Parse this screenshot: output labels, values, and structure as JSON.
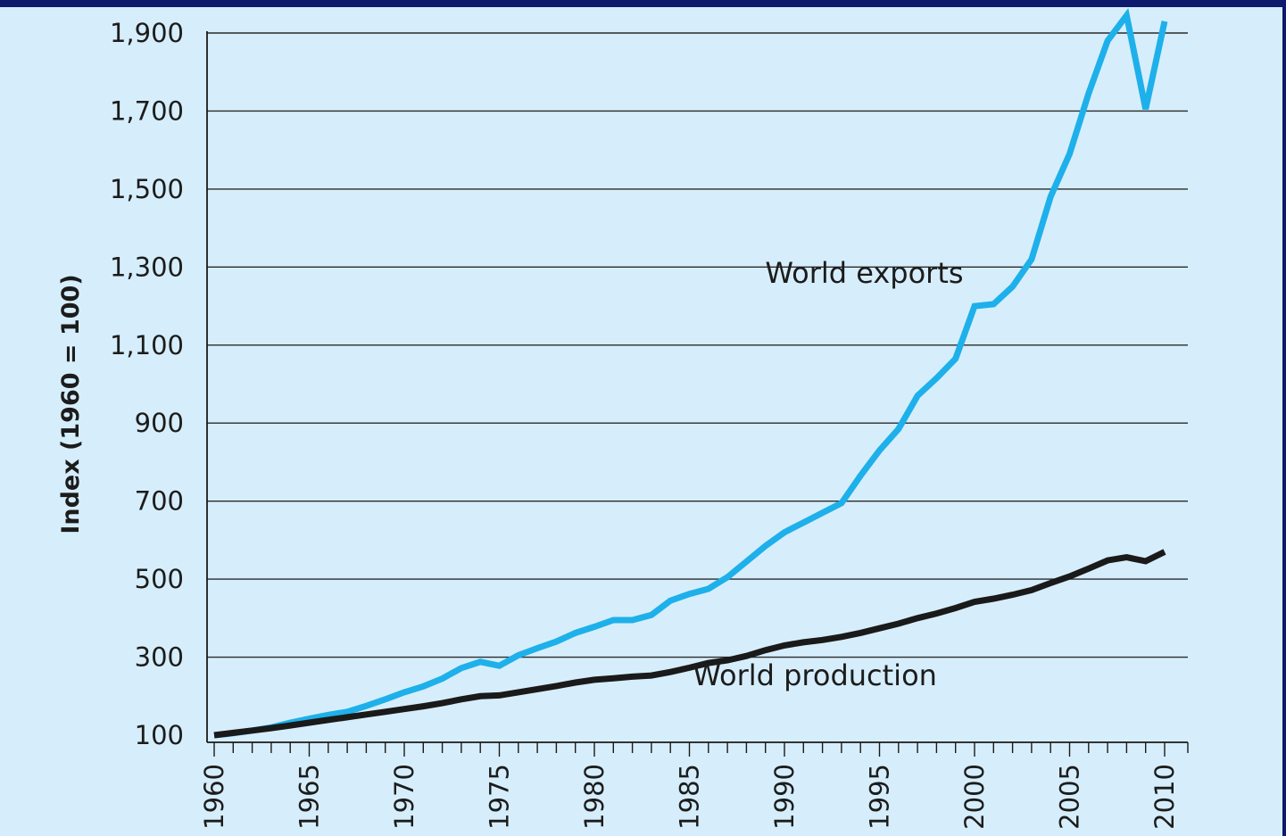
{
  "chart_data": {
    "type": "line",
    "title": "",
    "xlabel": "",
    "ylabel": "Index (1960 = 100)",
    "xlim": [
      1960,
      2010
    ],
    "ylim": [
      100,
      1900
    ],
    "y_ticks": [
      100,
      300,
      500,
      700,
      900,
      1100,
      1300,
      1500,
      1700,
      1900
    ],
    "y_tick_labels": [
      "100",
      "300",
      "500",
      "700",
      "900",
      "1,100",
      "1,300",
      "1,500",
      "1,700",
      "1,900"
    ],
    "x_major_ticks": [
      1960,
      1965,
      1970,
      1975,
      1980,
      1985,
      1990,
      1995,
      2000,
      2005,
      2010
    ],
    "grid": "horizontal",
    "x": [
      1960,
      1961,
      1962,
      1963,
      1964,
      1965,
      1966,
      1967,
      1968,
      1969,
      1970,
      1971,
      1972,
      1973,
      1974,
      1975,
      1976,
      1977,
      1978,
      1979,
      1980,
      1981,
      1982,
      1983,
      1984,
      1985,
      1986,
      1987,
      1988,
      1989,
      1990,
      1991,
      1992,
      1993,
      1994,
      1995,
      1996,
      1997,
      1998,
      1999,
      2000,
      2001,
      2002,
      2003,
      2004,
      2005,
      2006,
      2007,
      2008,
      2009,
      2010
    ],
    "series": [
      {
        "name": "World exports",
        "color": "#1eb0ea",
        "values": [
          100,
          105,
          112,
          120,
          132,
          142,
          152,
          160,
          175,
          192,
          210,
          225,
          245,
          272,
          288,
          278,
          305,
          323,
          340,
          362,
          378,
          395,
          395,
          408,
          445,
          462,
          475,
          505,
          545,
          585,
          620,
          645,
          670,
          695,
          765,
          830,
          885,
          970,
          1015,
          1065,
          1200,
          1205,
          1250,
          1320,
          1480,
          1590,
          1745,
          1880,
          1945,
          1705,
          1930
        ]
      },
      {
        "name": "World production",
        "color": "#1a1a1a",
        "values": [
          100,
          106,
          112,
          118,
          125,
          132,
          139,
          146,
          153,
          160,
          167,
          174,
          182,
          192,
          200,
          202,
          210,
          218,
          226,
          235,
          242,
          246,
          250,
          253,
          262,
          273,
          285,
          292,
          303,
          318,
          330,
          338,
          344,
          352,
          362,
          374,
          386,
          400,
          412,
          426,
          442,
          450,
          460,
          472,
          490,
          507,
          527,
          548,
          556,
          546,
          570
        ]
      }
    ]
  }
}
